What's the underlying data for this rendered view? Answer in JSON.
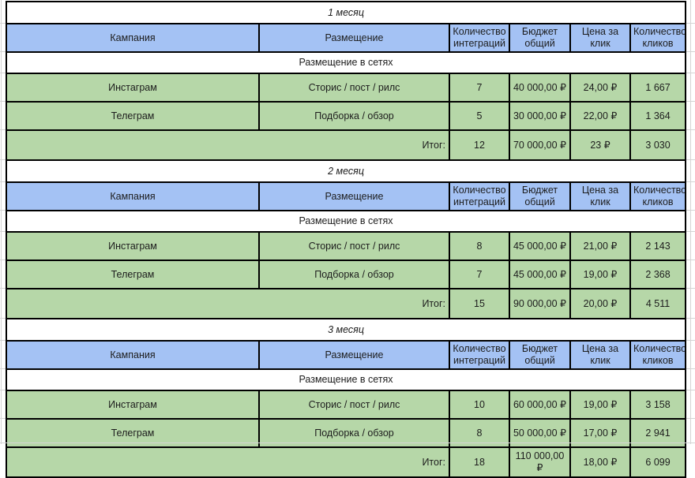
{
  "columns": [
    "Кампания",
    "Размещение",
    "Количество интеграций",
    "Бюджет общий",
    "Цена за клик",
    "Количество кликов"
  ],
  "sections": [
    {
      "title": "1 месяц",
      "group_label": "Размещение в сетях",
      "rows": [
        {
          "campaign": "Инстаграм",
          "placement": "Сторис / пост / рилс",
          "integrations": "7",
          "budget": "40 000,00 ₽",
          "cpc": "24,00 ₽",
          "clicks": "1 667"
        },
        {
          "campaign": "Телеграм",
          "placement": "Подборка / обзор",
          "integrations": "5",
          "budget": "30 000,00 ₽",
          "cpc": "22,00 ₽",
          "clicks": "1 364"
        }
      ],
      "total": {
        "label": "Итог:",
        "integrations": "12",
        "budget": "70 000,00 ₽",
        "cpc": "23 ₽",
        "clicks": "3 030"
      }
    },
    {
      "title": "2 месяц",
      "group_label": "Размещение в сетях",
      "rows": [
        {
          "campaign": "Инстаграм",
          "placement": "Сторис / пост / рилс",
          "integrations": "8",
          "budget": "45 000,00 ₽",
          "cpc": "21,00 ₽",
          "clicks": "2 143"
        },
        {
          "campaign": "Телеграм",
          "placement": "Подборка / обзор",
          "integrations": "7",
          "budget": "45 000,00 ₽",
          "cpc": "19,00 ₽",
          "clicks": "2 368"
        }
      ],
      "total": {
        "label": "Итог:",
        "integrations": "15",
        "budget": "90 000,00 ₽",
        "cpc": "20,00 ₽",
        "clicks": "4 511"
      }
    },
    {
      "title": "3 месяц",
      "group_label": "Размещение в сетях",
      "rows": [
        {
          "campaign": "Инстаграм",
          "placement": "Сторис / пост / рилс",
          "integrations": "10",
          "budget": "60 000,00 ₽",
          "cpc": "19,00 ₽",
          "clicks": "3 158"
        },
        {
          "campaign": "Телеграм",
          "placement": "Подборка / обзор",
          "integrations": "8",
          "budget": "50 000,00 ₽",
          "cpc": "17,00 ₽",
          "clicks": "2 941"
        }
      ],
      "total": {
        "label": "Итог:",
        "integrations": "18",
        "budget": "110 000,00 ₽",
        "cpc": "18,00 ₽",
        "clicks": "6 099"
      }
    }
  ],
  "colors": {
    "header_bg": "#a4c2f4",
    "row_bg": "#b6d7a8",
    "month_bg": "#ffffff",
    "group_bg": "#ffffff",
    "border": "#000000",
    "gridline": "#d4d4d4"
  }
}
